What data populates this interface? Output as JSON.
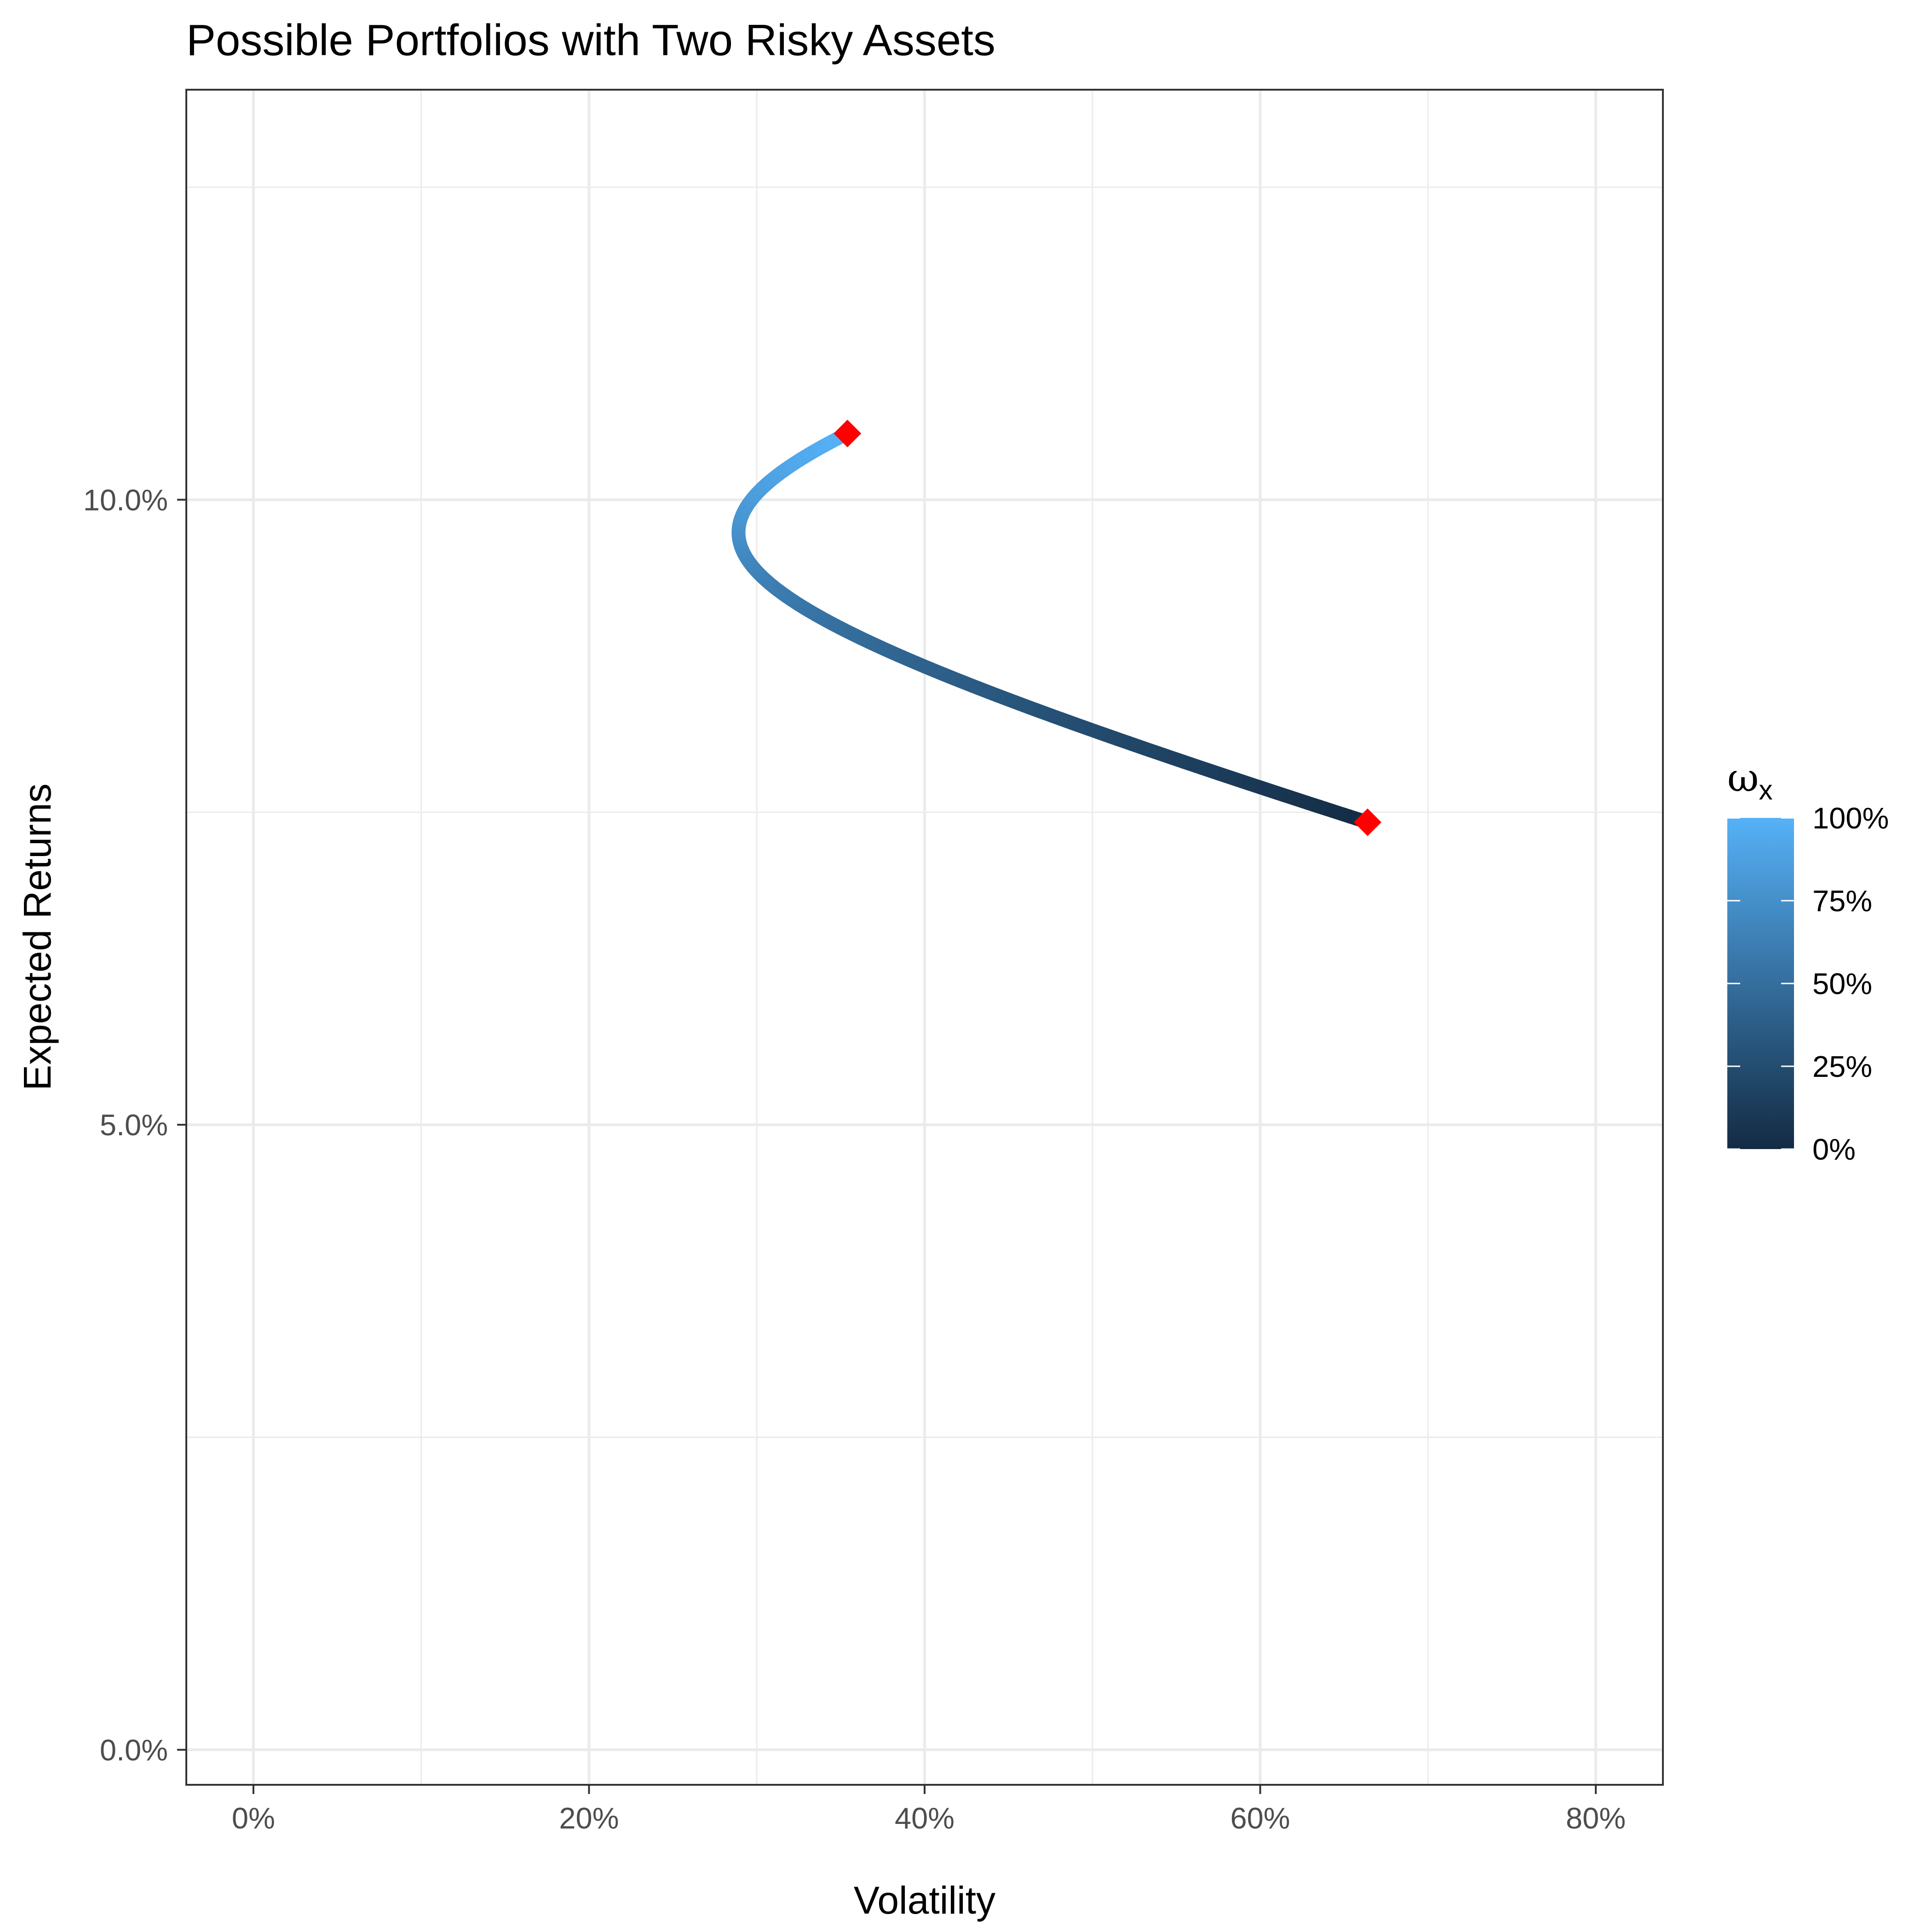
{
  "chart_data": {
    "type": "line",
    "title": "Possible Portfolios with Two Risky Assets",
    "xlabel": "Volatility",
    "ylabel": "Expected Returns",
    "xlim": [
      -0.04,
      0.84
    ],
    "ylim": [
      -0.0028,
      0.1328
    ],
    "x_ticks": [
      0,
      0.2,
      0.4,
      0.6,
      0.8
    ],
    "x_tick_labels": [
      "0%",
      "20%",
      "40%",
      "60%",
      "80%"
    ],
    "y_ticks": [
      0,
      0.05,
      0.1
    ],
    "y_tick_labels": [
      "0.0%",
      "5.0%",
      "10.0%"
    ],
    "grid": true,
    "frontier": {
      "weight_range": [
        0,
        1
      ],
      "expected_return_asset_x": 0.1053,
      "expected_return_asset_y": 0.0742,
      "volatility_asset_x": 0.354,
      "volatility_asset_y": 0.664,
      "correlation": -0.164,
      "sample_points": 201
    },
    "endpoints": [
      {
        "volatility": 0.354,
        "expected_return": 0.1053
      },
      {
        "volatility": 0.664,
        "expected_return": 0.0742
      }
    ],
    "endpoint_color": "#ff0000",
    "color_scale": {
      "title_symbol": "ω",
      "title_subscript": "x",
      "low_color": "#132b43",
      "high_color": "#56b1f7",
      "ticks": [
        0,
        0.25,
        0.5,
        0.75,
        1
      ],
      "tick_labels": [
        "0%",
        "25%",
        "50%",
        "75%",
        "100%"
      ],
      "placement": "right"
    }
  }
}
